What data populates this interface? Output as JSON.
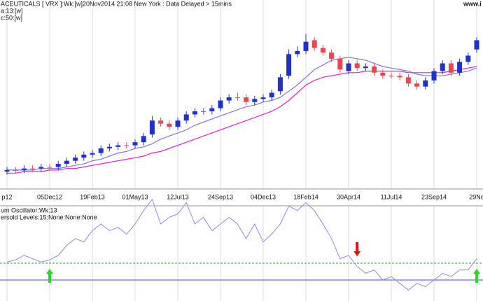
{
  "chart_data": [
    {
      "type": "candlestick",
      "title": "ACEUTICALS [ VRX ]:Wk:[w]",
      "subtitle": "20Nov2014 21:08 New York : Data Delayed > 15mins",
      "watermark": "www.i",
      "categories": [
        "p12",
        null,
        null,
        null,
        null,
        "05Dec12",
        null,
        null,
        null,
        null,
        "19Feb13",
        null,
        null,
        null,
        null,
        "01May13",
        null,
        null,
        null,
        null,
        "12Jul13",
        null,
        null,
        null,
        null,
        "24Sep13",
        null,
        null,
        null,
        null,
        "04Dec13",
        null,
        null,
        null,
        null,
        "18Feb14",
        null,
        null,
        null,
        null,
        "30Apr14",
        null,
        null,
        null,
        null,
        "11Jul14",
        null,
        null,
        null,
        null,
        "23Sep14",
        null,
        null,
        null,
        null,
        "29No"
      ],
      "open": [
        49,
        50,
        50,
        51,
        51,
        52,
        52,
        54,
        56,
        58,
        60,
        61,
        64,
        65,
        66,
        66,
        68,
        73,
        82,
        80,
        78,
        82,
        86,
        88,
        88,
        90,
        95,
        97,
        97,
        94,
        96,
        97,
        101,
        111,
        125,
        127,
        134,
        129,
        126,
        122,
        114,
        119,
        116,
        117,
        113,
        111,
        111,
        110,
        106,
        104,
        108,
        114,
        119,
        113,
        120,
        128
      ],
      "high": [
        52,
        52,
        53,
        53,
        54,
        54,
        56,
        58,
        60,
        62,
        63,
        66,
        67,
        68,
        68,
        70,
        74,
        85,
        84,
        82,
        84,
        88,
        90,
        90,
        92,
        97,
        99,
        100,
        99,
        98,
        99,
        102,
        112,
        128,
        130,
        138,
        136,
        131,
        128,
        124,
        121,
        121,
        119,
        119,
        115,
        113,
        113,
        112,
        108,
        110,
        116,
        121,
        121,
        122,
        126,
        136
      ],
      "low": [
        47,
        48,
        48,
        49,
        49,
        50,
        50,
        52,
        54,
        56,
        58,
        59,
        62,
        63,
        64,
        64,
        66,
        71,
        78,
        76,
        76,
        80,
        84,
        86,
        86,
        88,
        93,
        95,
        92,
        92,
        94,
        95,
        99,
        109,
        123,
        125,
        127,
        124,
        120,
        113,
        112,
        114,
        114,
        111,
        109,
        109,
        108,
        104,
        102,
        102,
        106,
        112,
        111,
        111,
        118,
        126
      ],
      "close": [
        50,
        50,
        51,
        51,
        52,
        52,
        54,
        56,
        58,
        60,
        61,
        64,
        65,
        66,
        66,
        68,
        72,
        82,
        80,
        78,
        82,
        86,
        88,
        88,
        90,
        95,
        97,
        97,
        94,
        96,
        97,
        100,
        110,
        125,
        127,
        133,
        129,
        126,
        122,
        115,
        119,
        116,
        117,
        113,
        111,
        111,
        110,
        106,
        104,
        108,
        114,
        119,
        113,
        120,
        124,
        134
      ],
      "up_color": "#1f2fd0",
      "down_color": "#e5484d",
      "series": [
        {
          "name": "a:13:[w]",
          "color": "#7a7ae6",
          "values": [
            50,
            50,
            50,
            50,
            51,
            51,
            51,
            52,
            53,
            54,
            56,
            57,
            59,
            61,
            62,
            64,
            65,
            67,
            70,
            72,
            74,
            76,
            79,
            81,
            83,
            85,
            87,
            89,
            91,
            92,
            94,
            95,
            97,
            101,
            105,
            110,
            115,
            118,
            121,
            122,
            123,
            122,
            121,
            119,
            117,
            116,
            115,
            114,
            112,
            111,
            111,
            111,
            112,
            113,
            114,
            116
          ]
        },
        {
          "name": "c:50:[w]",
          "color": "#e020d0",
          "values": [
            48,
            48,
            49,
            49,
            49,
            50,
            50,
            51,
            51,
            52,
            53,
            54,
            55,
            56,
            57,
            58,
            59,
            61,
            62,
            64,
            66,
            68,
            70,
            72,
            74,
            76,
            78,
            80,
            82,
            84,
            86,
            88,
            91,
            95,
            100,
            105,
            108,
            110,
            111,
            112,
            113,
            113,
            114,
            114,
            114,
            114,
            114,
            113,
            113,
            113,
            113,
            113,
            114,
            115,
            116,
            117
          ]
        }
      ],
      "ylim": [
        40,
        160
      ],
      "grid": true
    },
    {
      "type": "line",
      "title": "um Oscillator:Wk:13",
      "subtitle": "ersold Levels:15:None:None:None",
      "color": "#8a8ae8",
      "values": [
        16,
        18,
        22,
        19,
        16,
        18,
        22,
        31,
        37,
        34,
        44,
        50,
        44,
        47,
        41,
        50,
        62,
        72,
        50,
        56,
        59,
        69,
        50,
        56,
        44,
        50,
        56,
        50,
        37,
        50,
        34,
        41,
        50,
        66,
        62,
        69,
        62,
        50,
        37,
        19,
        22,
        12,
        6,
        9,
        0,
        3,
        -3,
        -9,
        -3,
        -6,
        0,
        6,
        3,
        9,
        9,
        19
      ],
      "levels": [
        {
          "value": 15,
          "color": "#2e9c2e",
          "dashed": true
        },
        {
          "value": 0,
          "color": "#4b4bd6",
          "dashed": false
        }
      ],
      "signals": [
        {
          "index": 5,
          "direction": "up",
          "color": "#22dd22"
        },
        {
          "index": 41,
          "direction": "down",
          "color": "#e01010"
        },
        {
          "index": 55,
          "direction": "up",
          "color": "#22dd22"
        }
      ],
      "ylim": [
        -17.5,
        72.5
      ]
    }
  ]
}
